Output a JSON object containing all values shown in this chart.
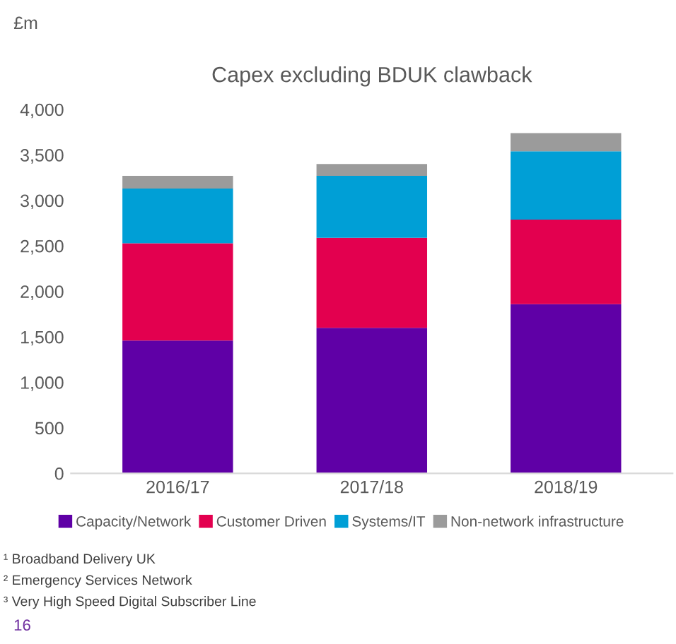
{
  "chart_data": {
    "type": "bar",
    "title": "Capex excluding BDUK clawback",
    "ylabel": "£m",
    "stacked": true,
    "categories": [
      "2016/17",
      "2017/18",
      "2018/19"
    ],
    "series": [
      {
        "name": "Capacity/Network",
        "color": "#5f00a6",
        "values": [
          1460,
          1600,
          1860
        ]
      },
      {
        "name": "Customer Driven",
        "color": "#e3004f",
        "values": [
          1070,
          990,
          930
        ]
      },
      {
        "name": "Systems/IT",
        "color": "#009fd6",
        "values": [
          600,
          680,
          750
        ]
      },
      {
        "name": "Non-network infrastructure",
        "color": "#9b9b9b",
        "values": [
          140,
          130,
          200
        ]
      }
    ],
    "ylim": [
      0,
      4000
    ],
    "yticks": [
      {
        "value": 0,
        "label": "0"
      },
      {
        "value": 500,
        "label": "500"
      },
      {
        "value": 1000,
        "label": "1,000"
      },
      {
        "value": 1500,
        "label": "1,500"
      },
      {
        "value": 2000,
        "label": "2,000"
      },
      {
        "value": 2500,
        "label": "2,500"
      },
      {
        "value": 3000,
        "label": "3,000"
      },
      {
        "value": 3500,
        "label": "3,500"
      },
      {
        "value": 4000,
        "label": "4,000"
      }
    ],
    "grid": false,
    "legend": "bottom",
    "annotations": [
      "¹ Broadband Delivery UK",
      "² Emergency Services Network",
      "³ Very High Speed Digital Subscriber Line",
      "16"
    ]
  }
}
